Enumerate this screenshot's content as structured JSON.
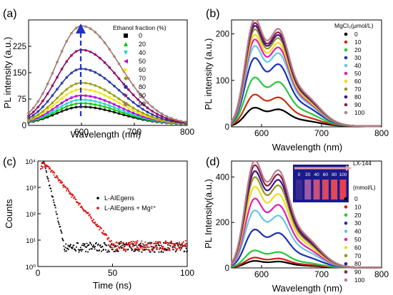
{
  "chart_data": [
    {
      "panel_label": "(a)",
      "type": "line",
      "xlabel": "Wavelength",
      "xunit": "(nm)",
      "ylabel": "PL intensity",
      "yunit": "(a.u.)",
      "xlim": [
        500,
        800
      ],
      "ylim": [
        0,
        300
      ],
      "xticks": [
        "600",
        "700",
        "800"
      ],
      "yticks": [
        "0",
        "75",
        "150",
        "225"
      ],
      "legend_title": "Ethanol fraction (%)",
      "legend_position": "top-right",
      "arrow": "up",
      "series": [
        {
          "name": "0",
          "peak": 50,
          "color": "#000000",
          "marker": "square"
        },
        {
          "name": "20",
          "peak": 60,
          "color": "#00c800",
          "marker": "triangle-up"
        },
        {
          "name": "40",
          "peak": 70,
          "color": "#22d2d2",
          "marker": "triangle-down"
        },
        {
          "name": "50",
          "peak": 82,
          "color": "#b400dc",
          "marker": "triangle-left"
        },
        {
          "name": "60",
          "peak": 100,
          "color": "#f0e600",
          "marker": "triangle-right"
        },
        {
          "name": "70",
          "peak": 118,
          "color": "#9a9a00",
          "marker": "diamond"
        },
        {
          "name": "80",
          "peak": 158,
          "color": "#1e32a0",
          "marker": "hexagon"
        },
        {
          "name": "90",
          "peak": 212,
          "color": "#8c0064",
          "marker": "star"
        },
        {
          "name": "99",
          "peak": 280,
          "color": "#a0786e",
          "marker": "circle"
        }
      ]
    },
    {
      "panel_label": "(b)",
      "type": "line",
      "xlabel": "Wavelength",
      "xunit": "(nm)",
      "ylabel": "PL intensity",
      "yunit": "(a.u.)",
      "xlim": [
        550,
        800
      ],
      "ylim": [
        0,
        230
      ],
      "xticks": [
        "600",
        "700",
        "800"
      ],
      "yticks": [
        "0",
        "100",
        "200"
      ],
      "legend_title": "MgCl₂(μmol/L)",
      "legend_position": "top-right",
      "series": [
        {
          "name": "0",
          "peak": 38,
          "color": "#000000"
        },
        {
          "name": "10",
          "peak": 65,
          "color": "#c83214"
        },
        {
          "name": "20",
          "peak": 100,
          "color": "#28c83c"
        },
        {
          "name": "30",
          "peak": 140,
          "color": "#1e32b4"
        },
        {
          "name": "40",
          "peak": 165,
          "color": "#64c8e6"
        },
        {
          "name": "50",
          "peak": 178,
          "color": "#e61eb4"
        },
        {
          "name": "60",
          "peak": 188,
          "color": "#f0dc1e"
        },
        {
          "name": "70",
          "peak": 199,
          "color": "#96961e"
        },
        {
          "name": "80",
          "peak": 206,
          "color": "#3c148c"
        },
        {
          "name": "90",
          "peak": 212,
          "color": "#8c1e50"
        },
        {
          "name": "100",
          "peak": 220,
          "color": "#b4828c"
        }
      ]
    },
    {
      "panel_label": "(c)",
      "type": "scatter",
      "xlabel": "Time (ns)",
      "ylabel": "Counts",
      "xlim": [
        0,
        100
      ],
      "ylim_log10": [
        0,
        4
      ],
      "xticks": [
        "0",
        "50",
        "100"
      ],
      "yticks": [
        "10⁰",
        "10¹",
        "10²",
        "10³",
        "10⁴"
      ],
      "legend_position": "right",
      "series": [
        {
          "name": "L-AIEgens",
          "color": "#000000",
          "tau_ns": 1.9
        },
        {
          "name": "L-AIEgens + Mg²⁺",
          "color": "#e60000",
          "tau_ns": 6.5
        }
      ]
    },
    {
      "panel_label": "(d)",
      "type": "line",
      "xlabel": "Wavelength",
      "xunit": "(nm)",
      "ylabel": "PL Intensity",
      "yunit": "(a.u.)",
      "xlim": [
        550,
        800
      ],
      "ylim": [
        0,
        470
      ],
      "xticks": [
        "600",
        "700",
        "800"
      ],
      "yticks": [
        "0",
        "200",
        "400"
      ],
      "legend_title": "LX-144",
      "legend_subtitle": "(mmol/L)",
      "legend_position": "right",
      "inset_labels": [
        "0",
        "20",
        "40",
        "60",
        "80",
        "100"
      ],
      "series": [
        {
          "name": "0",
          "peak": 28,
          "color": "#000000"
        },
        {
          "name": "10",
          "peak": 42,
          "color": "#d21e1e"
        },
        {
          "name": "20",
          "peak": 72,
          "color": "#28c83c"
        },
        {
          "name": "30",
          "peak": 160,
          "color": "#1e32b4"
        },
        {
          "name": "40",
          "peak": 240,
          "color": "#64c8e6"
        },
        {
          "name": "50",
          "peak": 290,
          "color": "#e61eb4"
        },
        {
          "name": "60",
          "peak": 340,
          "color": "#f0dc1e"
        },
        {
          "name": "70",
          "peak": 380,
          "color": "#96961e"
        },
        {
          "name": "80",
          "peak": 405,
          "color": "#3c148c"
        },
        {
          "name": "90",
          "peak": 430,
          "color": "#8c1e50"
        },
        {
          "name": "100",
          "peak": 450,
          "color": "#b4828c"
        }
      ]
    }
  ]
}
